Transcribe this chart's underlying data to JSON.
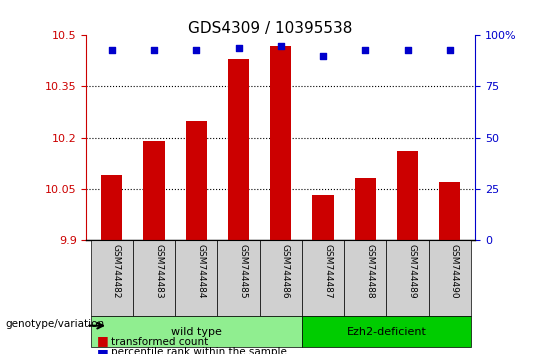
{
  "title": "GDS4309 / 10395538",
  "samples": [
    "GSM744482",
    "GSM744483",
    "GSM744484",
    "GSM744485",
    "GSM744486",
    "GSM744487",
    "GSM744488",
    "GSM744489",
    "GSM744490"
  ],
  "bar_values": [
    10.09,
    10.19,
    10.25,
    10.43,
    10.47,
    10.03,
    10.08,
    10.16,
    10.07
  ],
  "percentile_values": [
    93,
    93,
    93,
    94,
    95,
    90,
    93,
    93,
    93
  ],
  "bar_color": "#cc0000",
  "dot_color": "#0000cc",
  "ylim_left": [
    9.9,
    10.5
  ],
  "ylim_right": [
    0,
    100
  ],
  "yticks_left": [
    9.9,
    10.05,
    10.2,
    10.35,
    10.5
  ],
  "yticks_right": [
    0,
    25,
    50,
    75,
    100
  ],
  "ytick_labels_left": [
    "9.9",
    "10.05",
    "10.2",
    "10.35",
    "10.5"
  ],
  "ytick_labels_right": [
    "0",
    "25",
    "50",
    "75",
    "100%"
  ],
  "grid_values": [
    10.05,
    10.2,
    10.35
  ],
  "groups": [
    {
      "label": "wild type",
      "indices": [
        0,
        1,
        2,
        3,
        4
      ],
      "color": "#90ee90"
    },
    {
      "label": "Ezh2-deficient",
      "indices": [
        5,
        6,
        7,
        8
      ],
      "color": "#00cc00"
    }
  ],
  "genotype_label": "genotype/variation",
  "legend_bar_label": "transformed count",
  "legend_dot_label": "percentile rank within the sample",
  "bar_width": 0.5,
  "title_fontsize": 11,
  "tick_fontsize": 8,
  "label_fontsize": 8,
  "bg_color": "#ffffff",
  "plot_bg_color": "#ffffff",
  "tick_area_bg": "#d0d0d0"
}
